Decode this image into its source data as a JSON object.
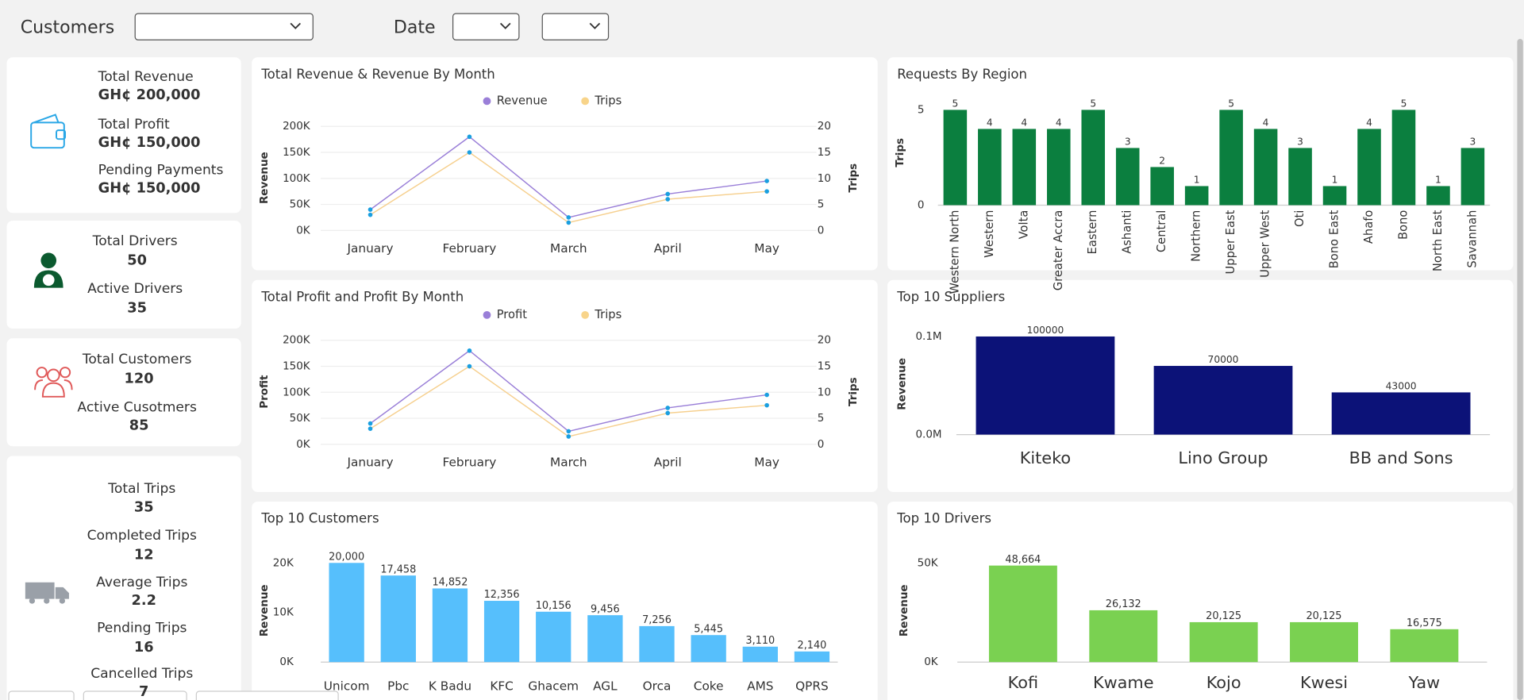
{
  "header": {
    "customers_label": "Customers",
    "date_label": "Date"
  },
  "kpis": [
    {
      "items": [
        {
          "label": "Total Revenue",
          "value": "GH¢ 200,000"
        },
        {
          "label": "Total Profit",
          "value": "GH¢ 150,000"
        },
        {
          "label": "Pending Payments",
          "value": "GH¢ 150,000"
        }
      ]
    },
    {
      "items": [
        {
          "label": "Total Drivers",
          "value": 50
        },
        {
          "label": "Active Drivers",
          "value": 35
        }
      ]
    },
    {
      "items": [
        {
          "label": "Total Customers",
          "value": 120
        },
        {
          "label": "Active Cusotmers",
          "value": 85
        }
      ]
    },
    {
      "items": [
        {
          "label": "Total Trips",
          "value": 35
        },
        {
          "label": "Completed Trips",
          "value": 12
        },
        {
          "label": "Average Trips",
          "value": 2.2
        },
        {
          "label": "Pending Trips",
          "value": 16
        },
        {
          "label": "Cancelled Trips",
          "value": 7
        }
      ]
    }
  ],
  "chart_data": [
    {
      "type": "line",
      "title": "Total Revenue & Revenue By Month",
      "y_label": "Revenue",
      "y2_label": "Trips",
      "categories": [
        "January",
        "February",
        "March",
        "April",
        "May"
      ],
      "series": [
        {
          "name": "Revenue",
          "color": "#9a7fd8",
          "values": [
            40000,
            180000,
            25000,
            70000,
            95000
          ]
        },
        {
          "name": "Trips",
          "color": "#f6d08f",
          "axis": "y2",
          "values": [
            3,
            15,
            1.5,
            6,
            7.5
          ]
        }
      ],
      "marker_color": "#1a9fe0",
      "ylim": [
        0,
        200000
      ],
      "yticks": [
        {
          "value": 0,
          "label": "0K"
        },
        {
          "value": 50000,
          "label": "50K"
        },
        {
          "value": 100000,
          "label": "100K"
        },
        {
          "value": 150000,
          "label": "150K"
        },
        {
          "value": 200000,
          "label": "200K"
        }
      ],
      "y2lim": [
        0,
        20
      ],
      "y2ticks": [
        0,
        5,
        10,
        15,
        20
      ],
      "grid": true,
      "legend": "top"
    },
    {
      "type": "line",
      "title": "Total Profit and Profit By Month",
      "y_label": "Profit",
      "y2_label": "Trips",
      "categories": [
        "January",
        "February",
        "March",
        "April",
        "May"
      ],
      "series": [
        {
          "name": "Profit",
          "color": "#9a7fd8",
          "values": [
            40000,
            180000,
            25000,
            70000,
            95000
          ]
        },
        {
          "name": "Trips",
          "color": "#f6d08f",
          "axis": "y2",
          "values": [
            3,
            15,
            1.5,
            6,
            7.5
          ]
        }
      ],
      "marker_color": "#1a9fe0",
      "ylim": [
        0,
        200000
      ],
      "yticks": [
        {
          "value": 0,
          "label": "0K"
        },
        {
          "value": 50000,
          "label": "50K"
        },
        {
          "value": 100000,
          "label": "100K"
        },
        {
          "value": 150000,
          "label": "150K"
        },
        {
          "value": 200000,
          "label": "200K"
        }
      ],
      "y2lim": [
        0,
        20
      ],
      "y2ticks": [
        0,
        5,
        10,
        15,
        20
      ],
      "grid": true,
      "legend": "top"
    },
    {
      "type": "bar",
      "title": "Requests By Region",
      "y_label": "Trips",
      "color": "#0b7f3f",
      "categories": [
        "Western North",
        "Western",
        "Volta",
        "Greater Accra",
        "Eastern",
        "Ashanti",
        "Central",
        "Northern",
        "Upper East",
        "Upper West",
        "Oti",
        "Bono East",
        "Ahafo",
        "Bono",
        "North East",
        "Savannah"
      ],
      "values": [
        5,
        4,
        4,
        4,
        5,
        3,
        2,
        1,
        5,
        4,
        3,
        1,
        4,
        5,
        1,
        3
      ],
      "ylim": [
        0,
        5
      ],
      "yticks": [
        0,
        5
      ],
      "grid": false
    },
    {
      "type": "bar",
      "title": "Top 10 Suppliers",
      "y_label": "Revenue",
      "color": "#0c1278",
      "categories": [
        "Kiteko",
        "Lino Group",
        "BB and Sons"
      ],
      "values": [
        100000,
        70000,
        43000
      ],
      "ylim": [
        0,
        110000
      ],
      "yticks": [
        {
          "value": 0,
          "label": "0.0M"
        },
        {
          "value": 100000,
          "label": "0.1M"
        }
      ],
      "grid": false
    },
    {
      "type": "bar",
      "title": "Top 10 Customers",
      "y_label": "Revenue",
      "color": "#56bffc",
      "categories": [
        "Unicom",
        "Pbc",
        "K Badu",
        "KFC",
        "Ghacem",
        "AGL",
        "Orca",
        "Coke",
        "AMS",
        "QPRS"
      ],
      "values": [
        20000,
        17458,
        14852,
        12356,
        10156,
        9456,
        7256,
        5445,
        3110,
        2140
      ],
      "value_labels": [
        "20,000",
        "17,458",
        "14,852",
        "12,356",
        "10,156",
        "9,456",
        "7,256",
        "5,445",
        "3,110",
        "2,140"
      ],
      "ylim": [
        0,
        20000
      ],
      "yticks": [
        {
          "value": 0,
          "label": "0K"
        },
        {
          "value": 10000,
          "label": "10K"
        },
        {
          "value": 20000,
          "label": "20K"
        }
      ],
      "grid": false
    },
    {
      "type": "bar",
      "title": "Top 10 Drivers",
      "y_label": "Revenue",
      "color": "#7ad151",
      "categories": [
        "Kofi",
        "Kwame",
        "Kojo",
        "Kwesi",
        "Yaw"
      ],
      "values": [
        48664,
        26132,
        20125,
        20125,
        16575
      ],
      "value_labels": [
        "48,664",
        "26,132",
        "20,125",
        "20,125",
        "16,575"
      ],
      "ylim": [
        0,
        50000
      ],
      "yticks": [
        {
          "value": 0,
          "label": "0K"
        },
        {
          "value": 50000,
          "label": "50K"
        }
      ],
      "grid": false
    }
  ]
}
